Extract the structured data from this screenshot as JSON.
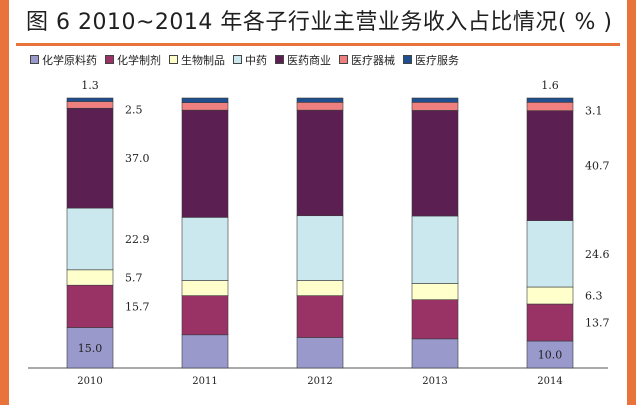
{
  "title": "图 6  2010~2014 年各子行业主营业务收入占比情况( % )",
  "colors": {
    "side_bar": "#e8743b",
    "title_rule": "#e8743b",
    "outline": "#3a3a3a"
  },
  "chart_data": {
    "type": "bar",
    "stacked": true,
    "title": "图 6  2010~2014 年各子行业主营业务收入占比情况( % )",
    "xlabel": "",
    "ylabel": "",
    "ylim": [
      0,
      100
    ],
    "grid": false,
    "legend_position": "top",
    "categories": [
      "2010",
      "2011",
      "2012",
      "2013",
      "2014"
    ],
    "series": [
      {
        "name": "化学原料药",
        "color": "#9999cc",
        "values": [
          15.0,
          12.3,
          11.3,
          10.8,
          10.0
        ]
      },
      {
        "name": "化学制剂",
        "color": "#993366",
        "values": [
          15.7,
          14.5,
          15.5,
          14.5,
          13.7
        ]
      },
      {
        "name": "生物制品",
        "color": "#ffffcc",
        "values": [
          5.7,
          5.6,
          5.6,
          6.0,
          6.3
        ]
      },
      {
        "name": "中药",
        "color": "#cce8ef",
        "values": [
          22.9,
          23.4,
          24.0,
          25.0,
          24.6
        ]
      },
      {
        "name": "医药商业",
        "color": "#5c1f52",
        "values": [
          37.0,
          39.7,
          39.1,
          39.1,
          40.7
        ]
      },
      {
        "name": "医疗器械",
        "color": "#f08080",
        "values": [
          2.5,
          2.8,
          2.9,
          3.0,
          3.1
        ]
      },
      {
        "name": "医疗服务",
        "color": "#1f4f8f",
        "values": [
          1.3,
          1.7,
          1.6,
          1.6,
          1.6
        ]
      }
    ],
    "data_labels": [
      {
        "category_index": 0,
        "series_index": 0,
        "text": "15.0",
        "side": "inside"
      },
      {
        "category_index": 0,
        "series_index": 1,
        "text": "15.7",
        "side": "right"
      },
      {
        "category_index": 0,
        "series_index": 2,
        "text": "5.7",
        "side": "right"
      },
      {
        "category_index": 0,
        "series_index": 3,
        "text": "22.9",
        "side": "right"
      },
      {
        "category_index": 0,
        "series_index": 4,
        "text": "37.0",
        "side": "right"
      },
      {
        "category_index": 0,
        "series_index": 5,
        "text": "2.5",
        "side": "right"
      },
      {
        "category_index": 0,
        "series_index": 6,
        "text": "1.3",
        "side": "above"
      },
      {
        "category_index": 4,
        "series_index": 0,
        "text": "10.0",
        "side": "inside"
      },
      {
        "category_index": 4,
        "series_index": 1,
        "text": "13.7",
        "side": "right"
      },
      {
        "category_index": 4,
        "series_index": 2,
        "text": "6.3",
        "side": "right"
      },
      {
        "category_index": 4,
        "series_index": 3,
        "text": "24.6",
        "side": "right"
      },
      {
        "category_index": 4,
        "series_index": 4,
        "text": "40.7",
        "side": "right"
      },
      {
        "category_index": 4,
        "series_index": 5,
        "text": "3.1",
        "side": "right"
      },
      {
        "category_index": 4,
        "series_index": 6,
        "text": "1.6",
        "side": "above"
      }
    ]
  }
}
